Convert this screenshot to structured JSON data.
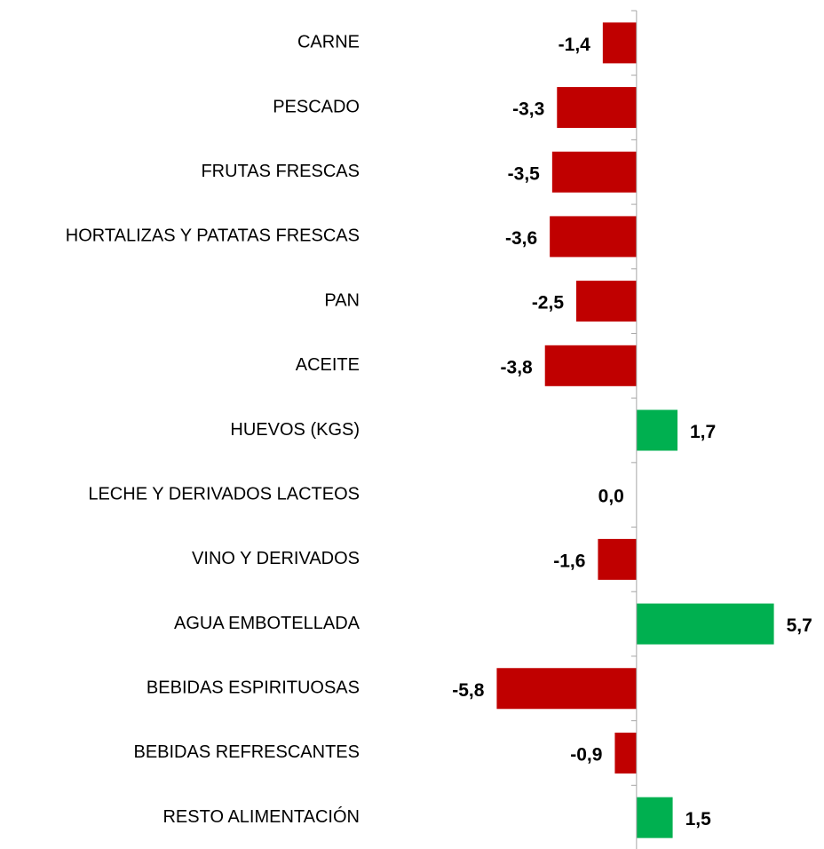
{
  "chart_data": {
    "type": "bar",
    "orientation": "horizontal",
    "categories": [
      "CARNE",
      "PESCADO",
      "FRUTAS FRESCAS",
      "HORTALIZAS Y PATATAS FRESCAS",
      "PAN",
      "ACEITE",
      "HUEVOS (KGS)",
      "LECHE Y DERIVADOS LACTEOS",
      "VINO Y DERIVADOS",
      "AGUA EMBOTELLADA",
      "BEBIDAS ESPIRITUOSAS",
      "BEBIDAS REFRESCANTES",
      "RESTO ALIMENTACIÓN"
    ],
    "values": [
      -1.4,
      -3.3,
      -3.5,
      -3.6,
      -2.5,
      -3.8,
      1.7,
      0.0,
      -1.6,
      5.7,
      -5.8,
      -0.9,
      1.5
    ],
    "value_labels": [
      "-1,4",
      "-3,3",
      "-3,5",
      "-3,6",
      "-2,5",
      "-3,8",
      "1,7",
      "0,0",
      "-1,6",
      "5,7",
      "-5,8",
      "-0,9",
      "1,5"
    ],
    "colors": [
      "#c00000",
      "#c00000",
      "#c00000",
      "#c00000",
      "#c00000",
      "#c00000",
      "#00b050",
      "#c00000",
      "#c00000",
      "#00b050",
      "#c00000",
      "#c00000",
      "#00b050"
    ],
    "xlim": [
      -6,
      6.6
    ]
  }
}
